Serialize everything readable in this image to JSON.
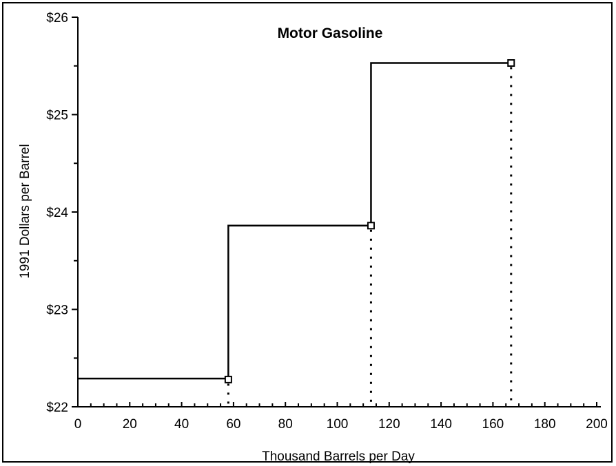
{
  "chart_data": {
    "type": "line",
    "title": "Motor Gasoline",
    "xlabel": "Thousand Barrels per Day",
    "ylabel": "1991 Dollars per Barrel",
    "xlim": [
      0,
      200
    ],
    "ylim": [
      22,
      26
    ],
    "x_ticks": [
      0,
      20,
      40,
      60,
      80,
      100,
      120,
      140,
      160,
      180,
      200
    ],
    "x_tick_labels": [
      "0",
      "20",
      "40",
      "60",
      "80",
      "100",
      "120",
      "140",
      "160",
      "180",
      "200"
    ],
    "y_ticks": [
      22,
      23,
      24,
      25,
      26
    ],
    "y_tick_labels": [
      "$22",
      "$23",
      "$24",
      "$25",
      "$26"
    ],
    "grid": false,
    "legend": "none",
    "step_style": "post",
    "series": [
      {
        "x": [
          0,
          58,
          113,
          167
        ],
        "y": [
          22.29,
          23.86,
          25.53,
          25.53
        ],
        "line_color": "#000000"
      }
    ],
    "points": [
      {
        "x": 58,
        "y": 22.28
      },
      {
        "x": 113,
        "y": 23.86
      },
      {
        "x": 167,
        "y": 25.53
      }
    ],
    "dotted_drop_lines": true
  }
}
